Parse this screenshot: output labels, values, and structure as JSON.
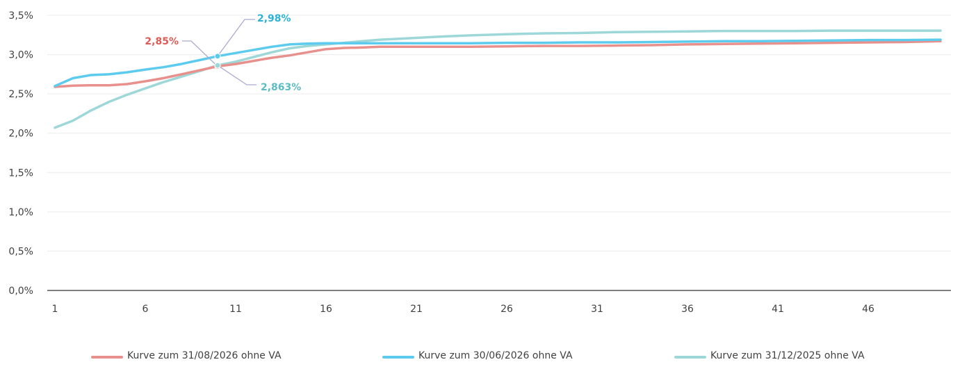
{
  "chart_data": {
    "type": "line",
    "title": "",
    "xlabel": "",
    "ylabel": "",
    "x_ticks": [
      "1",
      "6",
      "11",
      "16",
      "21",
      "26",
      "31",
      "36",
      "41",
      "46"
    ],
    "y_ticks": [
      "0,0%",
      "0,5%",
      "1,0%",
      "1,5%",
      "2,0%",
      "2,5%",
      "3,0%",
      "3,5%"
    ],
    "xlim": [
      1,
      50
    ],
    "ylim": [
      0,
      3.5
    ],
    "grid": "horizontal",
    "legend_position": "bottom",
    "series": [
      {
        "name": "Kurve zum 31/08/2026 ohne VA",
        "color": "#e8908c",
        "x": [
          1,
          2,
          3,
          4,
          5,
          6,
          7,
          8,
          9,
          10,
          11,
          12,
          13,
          14,
          15,
          16,
          17,
          18,
          19,
          20,
          22,
          24,
          26,
          28,
          30,
          32,
          34,
          36,
          38,
          40,
          42,
          44,
          46,
          48,
          50
        ],
        "values": [
          2.59,
          2.605,
          2.61,
          2.61,
          2.625,
          2.66,
          2.7,
          2.75,
          2.8,
          2.85,
          2.88,
          2.92,
          2.96,
          2.99,
          3.03,
          3.07,
          3.085,
          3.09,
          3.1,
          3.1,
          3.1,
          3.1,
          3.105,
          3.11,
          3.11,
          3.115,
          3.12,
          3.13,
          3.135,
          3.14,
          3.145,
          3.15,
          3.155,
          3.16,
          3.17
        ]
      },
      {
        "name": "Kurve zum 30/06/2026 ohne VA",
        "color": "#5ccbee",
        "x": [
          1,
          2,
          3,
          4,
          5,
          6,
          7,
          8,
          9,
          10,
          11,
          12,
          13,
          14,
          15,
          16,
          17,
          18,
          19,
          20,
          22,
          24,
          26,
          28,
          30,
          32,
          34,
          36,
          38,
          40,
          42,
          44,
          46,
          48,
          50
        ],
        "values": [
          2.6,
          2.7,
          2.74,
          2.75,
          2.775,
          2.81,
          2.84,
          2.88,
          2.93,
          2.98,
          3.02,
          3.06,
          3.1,
          3.13,
          3.14,
          3.145,
          3.145,
          3.145,
          3.145,
          3.145,
          3.145,
          3.145,
          3.15,
          3.15,
          3.155,
          3.155,
          3.16,
          3.165,
          3.17,
          3.17,
          3.175,
          3.18,
          3.185,
          3.185,
          3.19
        ]
      },
      {
        "name": "Kurve zum 31/12/2025 ohne VA",
        "color": "#9ed7d8",
        "x": [
          1,
          2,
          3,
          4,
          5,
          6,
          7,
          8,
          9,
          10,
          11,
          12,
          13,
          14,
          15,
          16,
          17,
          18,
          19,
          20,
          22,
          24,
          26,
          28,
          30,
          32,
          34,
          36,
          38,
          40,
          42,
          44,
          46,
          48,
          50
        ],
        "values": [
          2.07,
          2.16,
          2.29,
          2.4,
          2.49,
          2.57,
          2.65,
          2.72,
          2.79,
          2.863,
          2.91,
          2.97,
          3.03,
          3.08,
          3.11,
          3.13,
          3.15,
          3.17,
          3.19,
          3.2,
          3.225,
          3.245,
          3.26,
          3.27,
          3.275,
          3.285,
          3.29,
          3.295,
          3.3,
          3.3,
          3.3,
          3.305,
          3.305,
          3.305,
          3.305
        ]
      }
    ],
    "annotations": [
      {
        "text": "2,98%",
        "series": 1,
        "x": 10,
        "y": 2.98,
        "color": "#2bb2d6"
      },
      {
        "text": "2,85%",
        "series": 0,
        "x": 10,
        "y": 2.85,
        "color": "#e05a56"
      },
      {
        "text": "2,863%",
        "series": 2,
        "x": 10,
        "y": 2.863,
        "color": "#5bbcc4"
      }
    ]
  }
}
